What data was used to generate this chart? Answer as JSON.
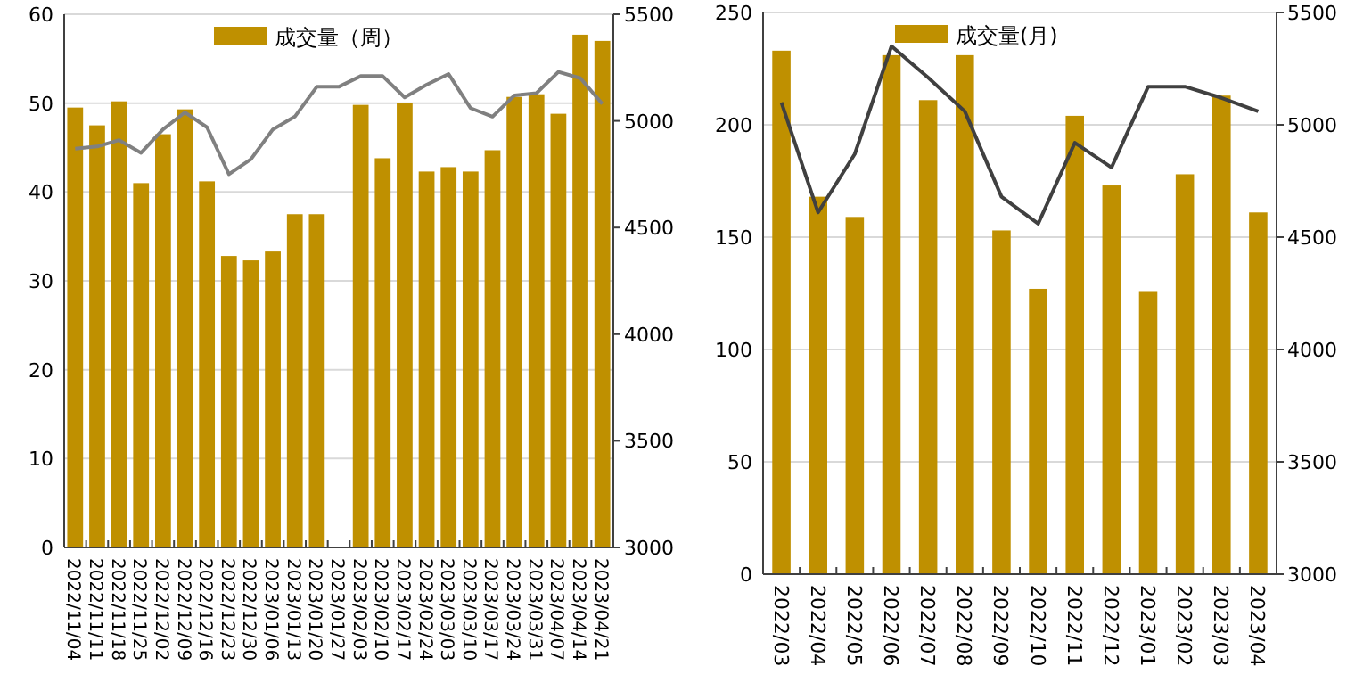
{
  "chart_data": [
    {
      "type": "bar",
      "categories": [
        "2022/11/04",
        "2022/11/11",
        "2022/11/18",
        "2022/11/25",
        "2022/12/02",
        "2022/12/09",
        "2022/12/16",
        "2022/12/23",
        "2022/12/30",
        "2023/01/06",
        "2023/01/13",
        "2023/01/20",
        "2023/01/27",
        "2023/02/03",
        "2023/02/10",
        "2023/02/17",
        "2023/02/24",
        "2023/03/03",
        "2023/03/10",
        "2023/03/17",
        "2023/03/24",
        "2023/03/31",
        "2023/04/07",
        "2023/04/14",
        "2023/04/21"
      ],
      "series": [
        {
          "name": "成交量（周）",
          "color": "#bf9000",
          "values": [
            49.5,
            47.5,
            50.2,
            41,
            46.5,
            49.3,
            41.2,
            32.8,
            32.3,
            33.3,
            37.5,
            37.5,
            null,
            49.8,
            43.8,
            50,
            42.3,
            42.8,
            42.3,
            44.7,
            50.7,
            51,
            48.8,
            57.7,
            57
          ]
        },
        {
          "type": "line",
          "axis": "y2",
          "color": "#808080",
          "values": [
            4870,
            4880,
            4910,
            4850,
            4960,
            5040,
            4970,
            4750,
            4820,
            4960,
            5020,
            5160,
            5160,
            5210,
            5210,
            5110,
            5170,
            5220,
            5060,
            5020,
            5120,
            5130,
            5230,
            5200,
            5080
          ]
        }
      ],
      "ylim": [
        0,
        60
      ],
      "yticks": [
        0,
        10,
        20,
        30,
        40,
        50,
        60
      ],
      "y2lim": [
        3000,
        5500
      ],
      "y2ticks": [
        3000,
        3500,
        4000,
        4500,
        5000,
        5500
      ],
      "grid": "y",
      "legend": "top"
    },
    {
      "type": "bar",
      "categories": [
        "2022/03",
        "2022/04",
        "2022/05",
        "2022/06",
        "2022/07",
        "2022/08",
        "2022/09",
        "2022/10",
        "2022/11",
        "2022/12",
        "2023/01",
        "2023/02",
        "2023/03",
        "2023/04"
      ],
      "series": [
        {
          "name": "成交量(月)",
          "color": "#bf9000",
          "values": [
            233,
            168,
            159,
            231,
            211,
            231,
            153,
            127,
            204,
            173,
            126,
            178,
            213,
            161
          ]
        },
        {
          "type": "line",
          "axis": "y2",
          "color": "#404040",
          "values": [
            5100,
            4610,
            4870,
            5350,
            5210,
            5060,
            4680,
            4560,
            4920,
            4810,
            5170,
            5170,
            5120,
            5060
          ]
        }
      ],
      "ylim": [
        0,
        250
      ],
      "yticks": [
        0,
        50,
        100,
        150,
        200,
        250
      ],
      "y2lim": [
        3000,
        5500
      ],
      "y2ticks": [
        3000,
        3500,
        4000,
        4500,
        5000,
        5500
      ],
      "grid": "y",
      "legend": "top"
    }
  ]
}
